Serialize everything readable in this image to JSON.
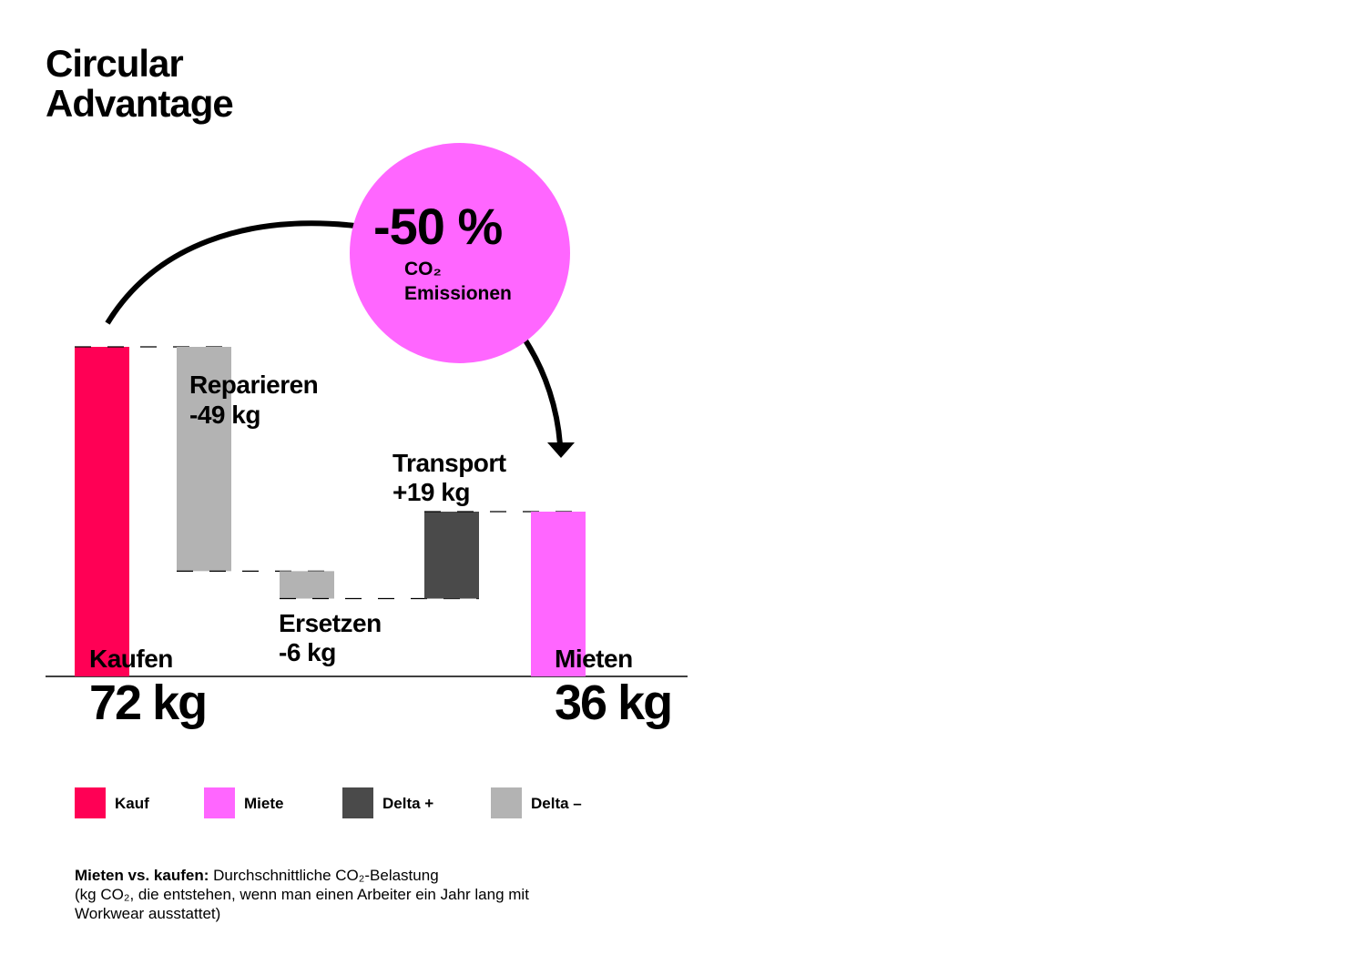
{
  "chart_data": {
    "type": "waterfall",
    "title": "Circular Advantage",
    "categories": [
      "Kaufen",
      "Reparieren",
      "Ersetzen",
      "Transport",
      "Mieten"
    ],
    "values": [
      72,
      -49,
      -6,
      19,
      36
    ],
    "value_labels": [
      "72 kg",
      "-49 kg",
      "-6 kg",
      "+19 kg",
      "36 kg"
    ],
    "colors": [
      "#ff0055",
      "#b3b3b3",
      "#b3b3b3",
      "#4a4a4a",
      "#ff66ff"
    ],
    "legend": [
      {
        "name": "Kauf",
        "color": "#ff0055"
      },
      {
        "name": "Miete",
        "color": "#ff66ff"
      },
      {
        "name": "Delta +",
        "color": "#4a4a4a"
      },
      {
        "name": "Delta –",
        "color": "#b3b3b3"
      }
    ],
    "annotation": {
      "value": "-50 %",
      "label": "CO₂",
      "sublabel": "Emissionen",
      "color": "#ff66ff"
    },
    "footnote": {
      "lead": "Mieten vs. kaufen:",
      "line1": "Durchschnittliche CO₂-Belastung",
      "line2": "(kg CO₂, die entstehen, wenn man einen Arbeiter ein Jahr lang mit",
      "line3": "Workwear ausstattet)"
    }
  }
}
